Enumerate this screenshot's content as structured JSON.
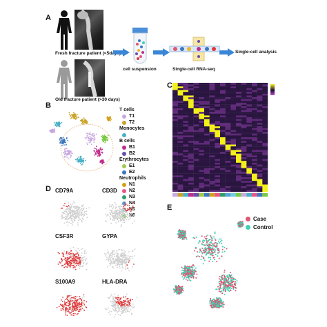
{
  "panels": {
    "a": {
      "letter": "A",
      "fresh_caption": "Fresh fracture patient (<5days)",
      "old_caption": "Old fracture patient (>30 days)",
      "suspension_label": "cell suspension",
      "rnaseq_label": "Single-cell RNA-seq",
      "analysis_label": "Single-cell analysis"
    },
    "b": {
      "letter": "B",
      "legend": [
        {
          "label": "T cells",
          "color": ""
        },
        {
          "label": "T1",
          "color": "#c8a8e0"
        },
        {
          "label": "T2",
          "color": "#c9a227"
        },
        {
          "label": "Monocytes",
          "color": ""
        },
        {
          "label": "",
          "color": "#49b0c6"
        },
        {
          "label": "B cells",
          "color": ""
        },
        {
          "label": "B1",
          "color": "#c02d8c"
        },
        {
          "label": "B2",
          "color": "#6a4ea8"
        },
        {
          "label": "Erythrocytes",
          "color": ""
        },
        {
          "label": "E1",
          "color": "#9ccc4e"
        },
        {
          "label": "E2",
          "color": "#3a78c2"
        },
        {
          "label": "Neutrophils",
          "color": ""
        },
        {
          "label": "N1",
          "color": "#d4a017"
        },
        {
          "label": "N2",
          "color": "#e8558a"
        },
        {
          "label": "N3",
          "color": "#2e9e6a"
        },
        {
          "label": "N4",
          "color": "#5aa2d8"
        },
        {
          "label": "N5",
          "color": "#6fd0d8"
        },
        {
          "label": "N6",
          "color": "#7ac943"
        }
      ]
    },
    "c": {
      "letter": "C"
    },
    "d": {
      "letter": "D",
      "genes": [
        "CD79A",
        "CD3D",
        "CSF3R",
        "GYPA",
        "S100A9",
        "HLA-DRA"
      ]
    },
    "e": {
      "letter": "E",
      "legend": [
        {
          "label": "Case",
          "color": "#e0566f"
        },
        {
          "label": "Control",
          "color": "#3fd1b5"
        }
      ]
    }
  },
  "colors": {
    "arrow": "#3a86d6",
    "heatmap_low": "#2a1540",
    "heatmap_high": "#f3f01a",
    "expr_low": "#cfcfcf",
    "expr_high": "#e0383a"
  }
}
